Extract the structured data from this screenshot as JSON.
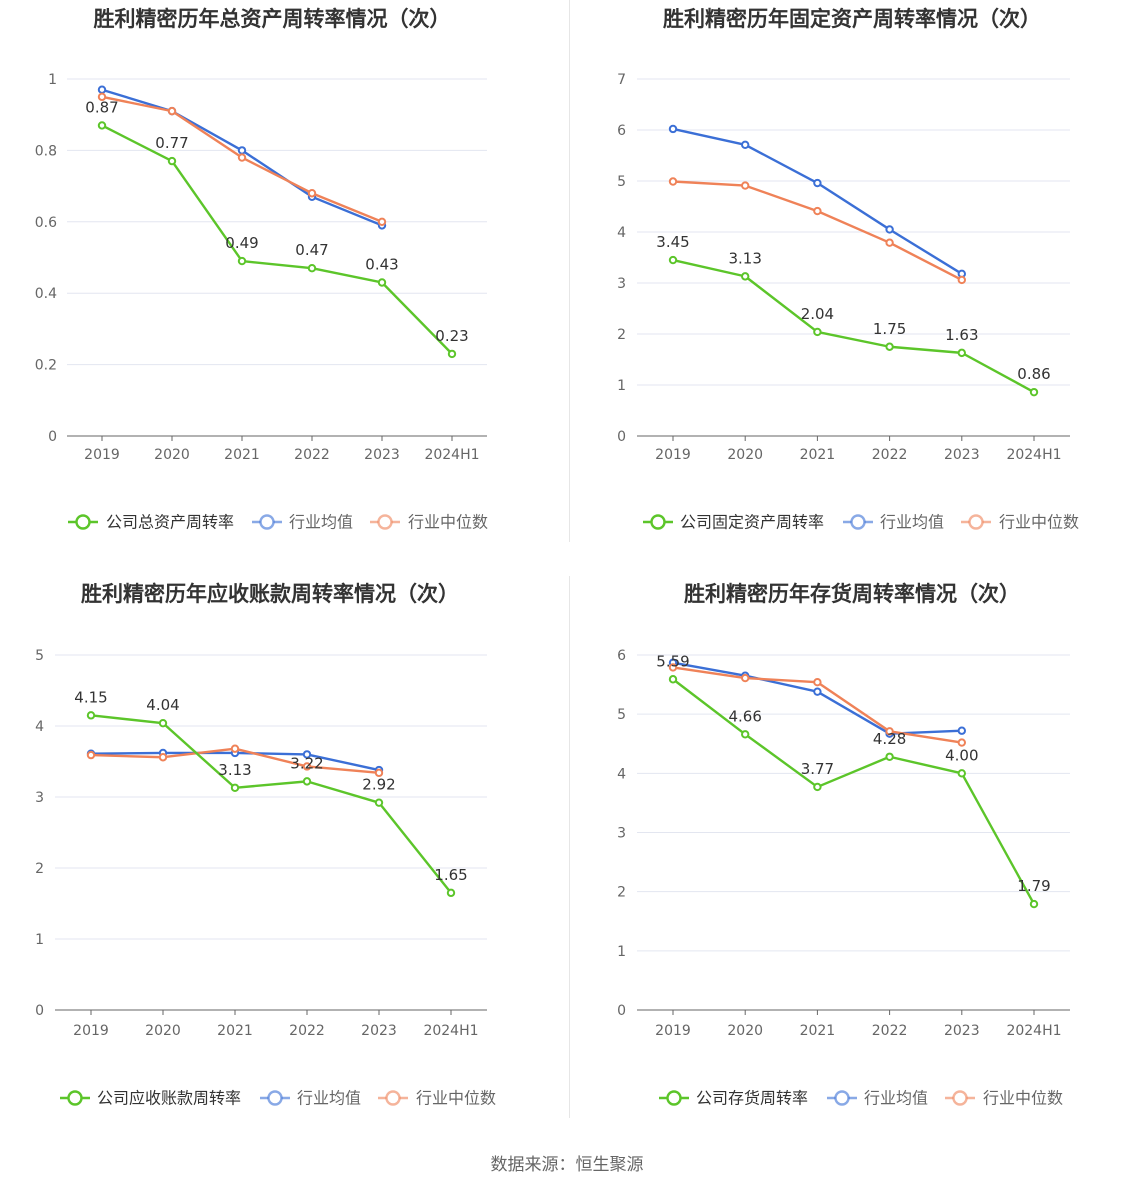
{
  "footer": {
    "source": "数据来源：恒生聚源"
  },
  "colors": {
    "company": "#5cc52a",
    "avg": "#3b6fd6",
    "median": "#ef8258",
    "grid": "#e3e6f0",
    "axis": "#555555",
    "text": "#333333"
  },
  "chart_data": [
    {
      "type": "line",
      "title": "胜利精密历年总资产周转率情况（次）",
      "categories": [
        "2019",
        "2020",
        "2021",
        "2022",
        "2023",
        "2024H1"
      ],
      "yticks": [
        "0",
        "0.2",
        "0.4",
        "0.6",
        "0.8",
        "1"
      ],
      "ylim": [
        0,
        1
      ],
      "legend_position": "bottom",
      "series": [
        {
          "name": "公司总资产周转率",
          "values": [
            0.87,
            0.77,
            0.49,
            0.47,
            0.43,
            0.23
          ],
          "labels": [
            "0.87",
            "0.77",
            "0.49",
            "0.47",
            "0.43",
            "0.23"
          ]
        },
        {
          "name": "行业均值",
          "values": [
            0.97,
            0.91,
            0.8,
            0.67,
            0.59,
            null
          ]
        },
        {
          "name": "行业中位数",
          "values": [
            0.95,
            0.91,
            0.78,
            0.68,
            0.6,
            null
          ]
        }
      ]
    },
    {
      "type": "line",
      "title": "胜利精密历年固定资产周转率情况（次）",
      "categories": [
        "2019",
        "2020",
        "2021",
        "2022",
        "2023",
        "2024H1"
      ],
      "yticks": [
        "0",
        "1",
        "2",
        "3",
        "4",
        "5",
        "6",
        "7"
      ],
      "ylim": [
        0,
        7
      ],
      "legend_position": "bottom",
      "series": [
        {
          "name": "公司固定资产周转率",
          "values": [
            3.45,
            3.13,
            2.04,
            1.75,
            1.63,
            0.86
          ],
          "labels": [
            "3.45",
            "3.13",
            "2.04",
            "1.75",
            "1.63",
            "0.86"
          ]
        },
        {
          "name": "行业均值",
          "values": [
            6.02,
            5.71,
            4.96,
            4.05,
            3.18,
            null
          ]
        },
        {
          "name": "行业中位数",
          "values": [
            4.99,
            4.91,
            4.41,
            3.79,
            3.06,
            null
          ]
        }
      ]
    },
    {
      "type": "line",
      "title": "胜利精密历年应收账款周转率情况（次）",
      "categories": [
        "2019",
        "2020",
        "2021",
        "2022",
        "2023",
        "2024H1"
      ],
      "yticks": [
        "0",
        "1",
        "2",
        "3",
        "4",
        "5"
      ],
      "ylim": [
        0,
        5
      ],
      "legend_position": "bottom",
      "series": [
        {
          "name": "公司应收账款周转率",
          "values": [
            4.15,
            4.04,
            3.13,
            3.22,
            2.92,
            1.65
          ],
          "labels": [
            "4.15",
            "4.04",
            "3.13",
            "3.22",
            "2.92",
            "1.65"
          ]
        },
        {
          "name": "行业均值",
          "values": [
            3.61,
            3.62,
            3.62,
            3.6,
            3.38,
            null
          ]
        },
        {
          "name": "行业中位数",
          "values": [
            3.59,
            3.56,
            3.68,
            3.43,
            3.34,
            null
          ]
        }
      ]
    },
    {
      "type": "line",
      "title": "胜利精密历年存货周转率情况（次）",
      "categories": [
        "2019",
        "2020",
        "2021",
        "2022",
        "2023",
        "2024H1"
      ],
      "yticks": [
        "0",
        "1",
        "2",
        "3",
        "4",
        "5",
        "6"
      ],
      "ylim": [
        0,
        6
      ],
      "legend_position": "bottom",
      "series": [
        {
          "name": "公司存货周转率",
          "values": [
            5.59,
            4.66,
            3.77,
            4.28,
            4.0,
            1.79
          ],
          "labels": [
            "5.59",
            "4.66",
            "3.77",
            "4.28",
            "4.00",
            "1.79"
          ]
        },
        {
          "name": "行业均值",
          "values": [
            5.87,
            5.65,
            5.38,
            4.67,
            4.72,
            null
          ]
        },
        {
          "name": "行业中位数",
          "values": [
            5.79,
            5.61,
            5.54,
            4.71,
            4.52,
            null
          ]
        }
      ]
    }
  ]
}
